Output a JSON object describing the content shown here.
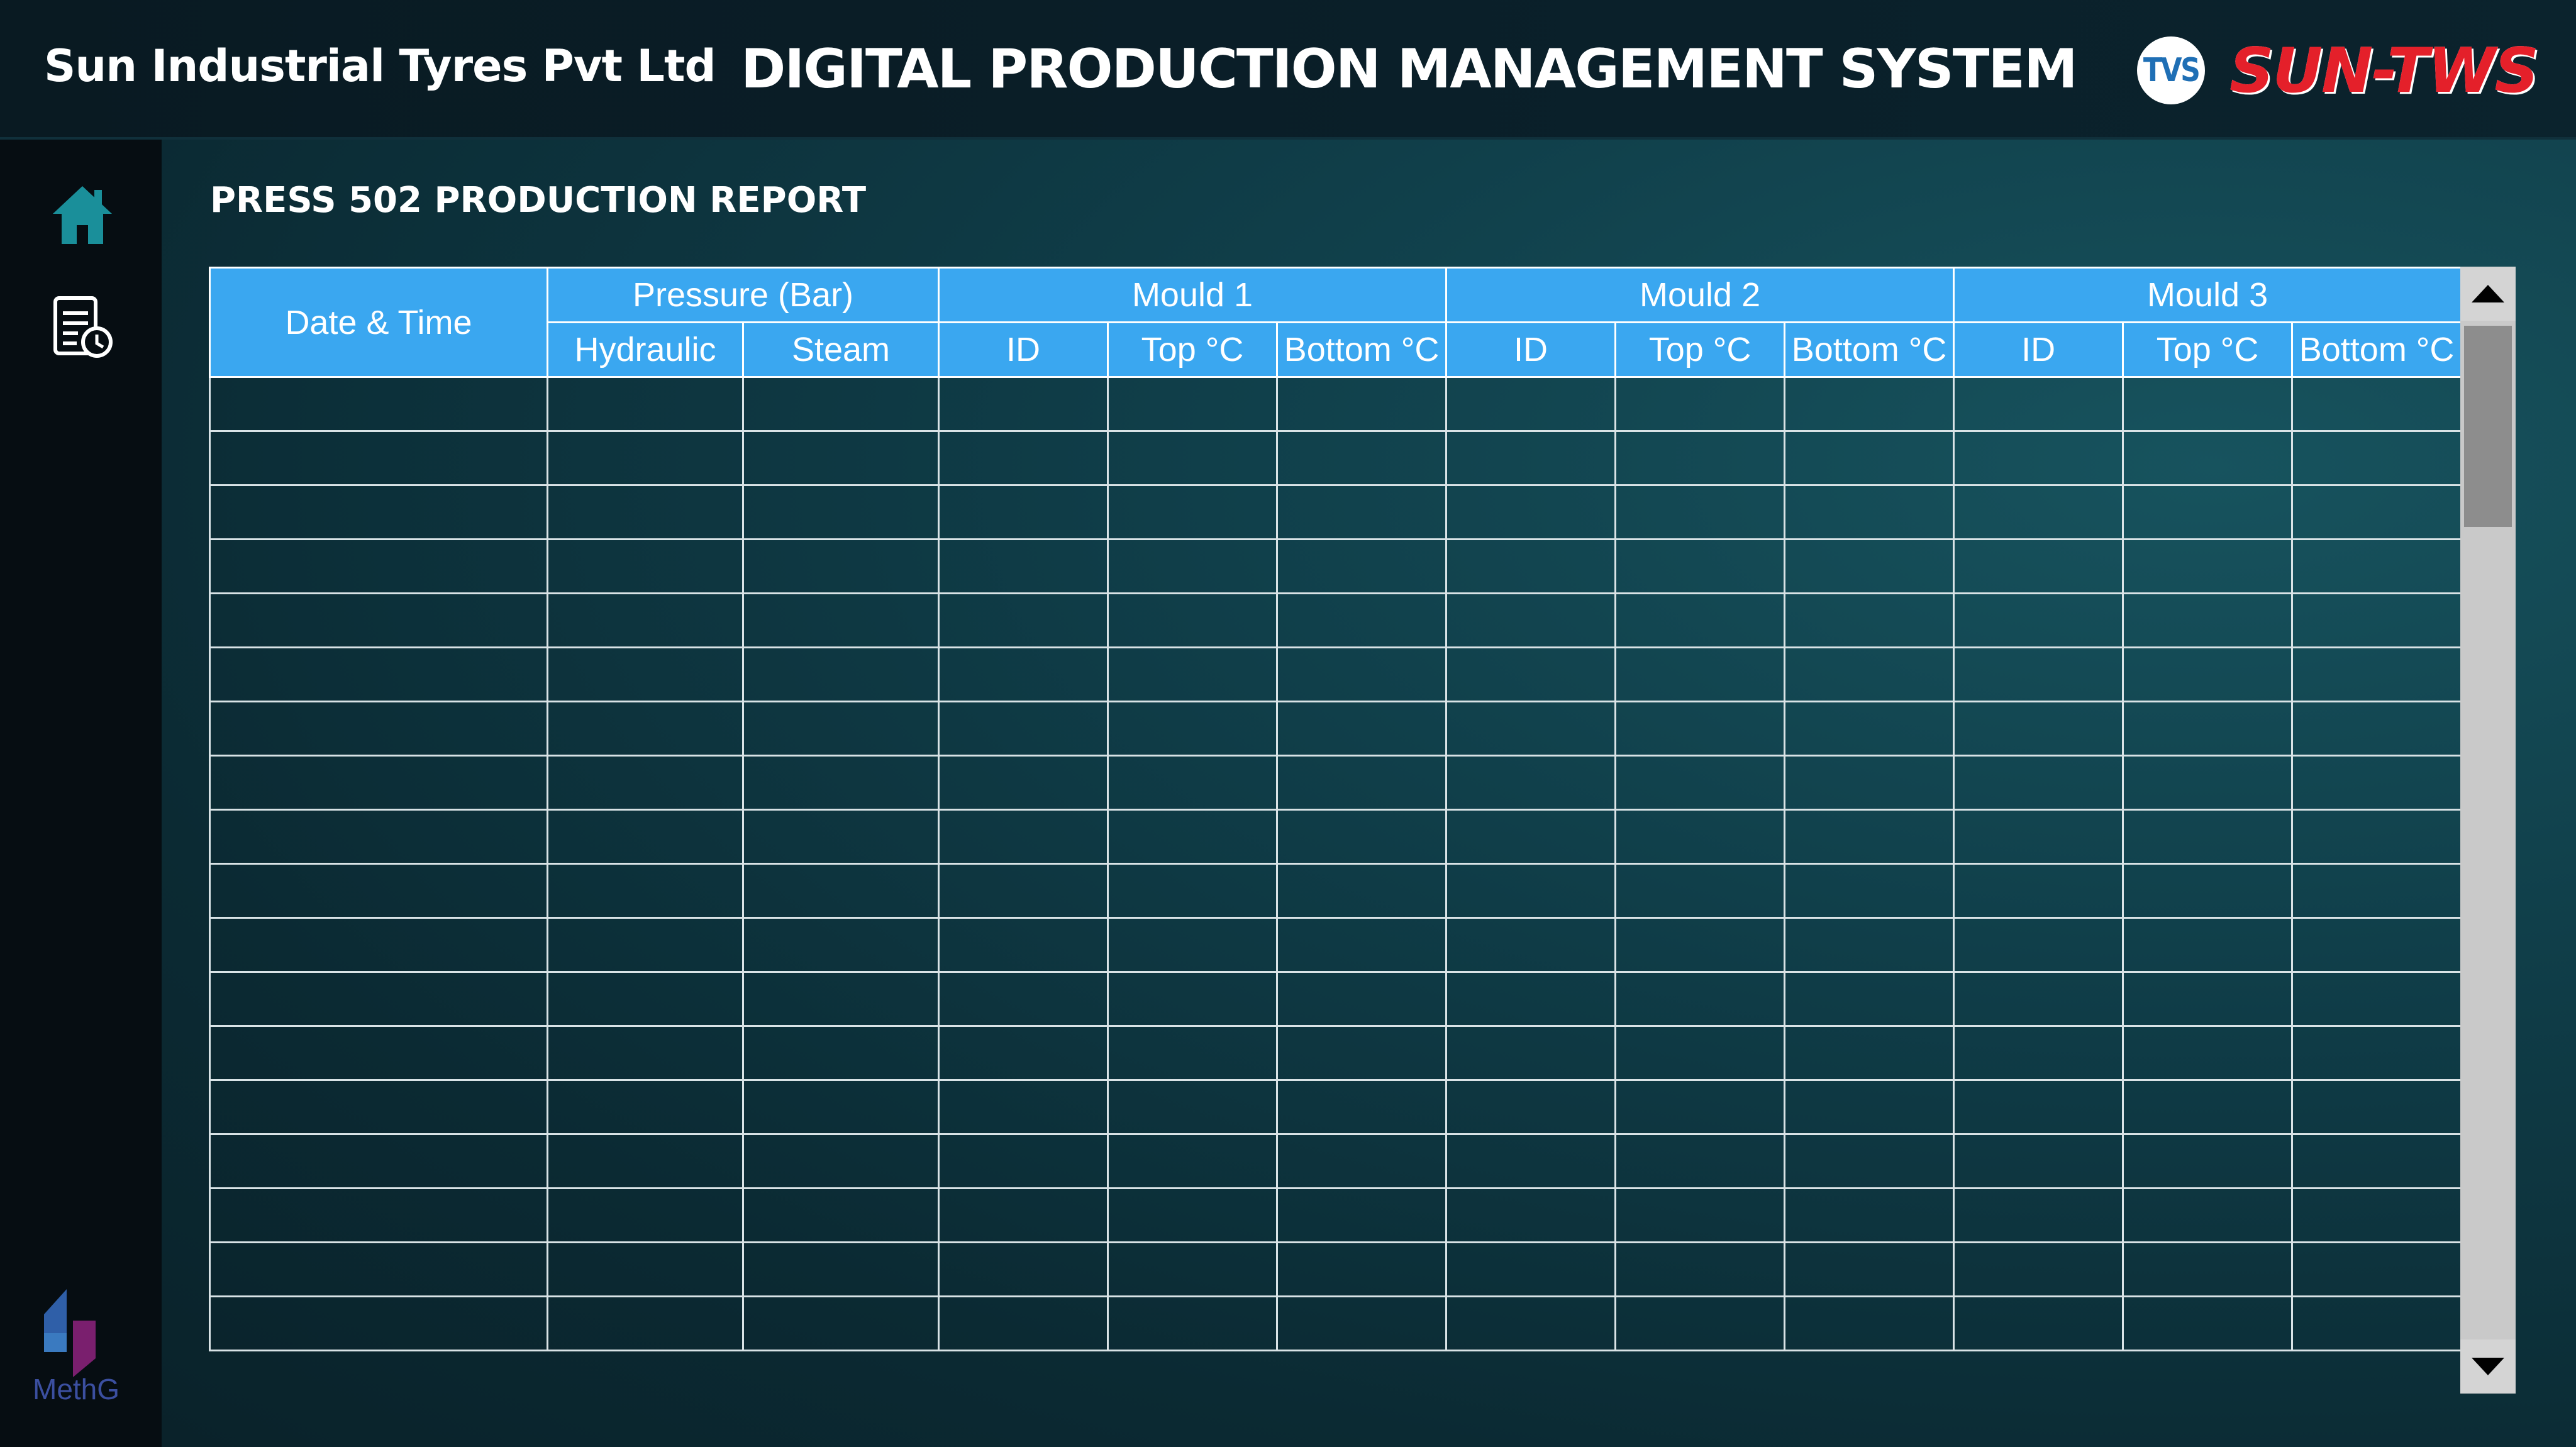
{
  "header": {
    "company": "Sun Industrial Tyres Pvt Ltd",
    "title": "DIGITAL PRODUCTION MANAGEMENT SYSTEM",
    "tvs_badge": "TVS",
    "brand": "SUN-TWS"
  },
  "sidebar": {
    "items": [
      {
        "icon": "home-icon"
      },
      {
        "icon": "report-history-icon"
      }
    ],
    "footer_logo": "MethG"
  },
  "report": {
    "title": "PRESS 502 PRODUCTION REPORT",
    "groups": {
      "date_time": "Date & Time",
      "pressure": "Pressure (Bar)",
      "mould1": "Mould 1",
      "mould2": "Mould 2",
      "mould3": "Mould 3"
    },
    "columns": {
      "hydraulic": "Hydraulic",
      "steam": "Steam",
      "m1_id": "ID",
      "m1_top": "Top °C",
      "m1_bottom": "Bottom °C",
      "m2_id": "ID",
      "m2_top": "Top °C",
      "m2_bottom": "Bottom °C",
      "m3_id": "ID",
      "m3_top": "Top °C",
      "m3_bottom": "Bottom °C"
    },
    "empty_row_count": 18
  },
  "colors": {
    "header_bg": "#0a1f29",
    "table_header": "#3aa7f0",
    "home_icon": "#1a8f9a",
    "brand_red": "#e4202a"
  }
}
